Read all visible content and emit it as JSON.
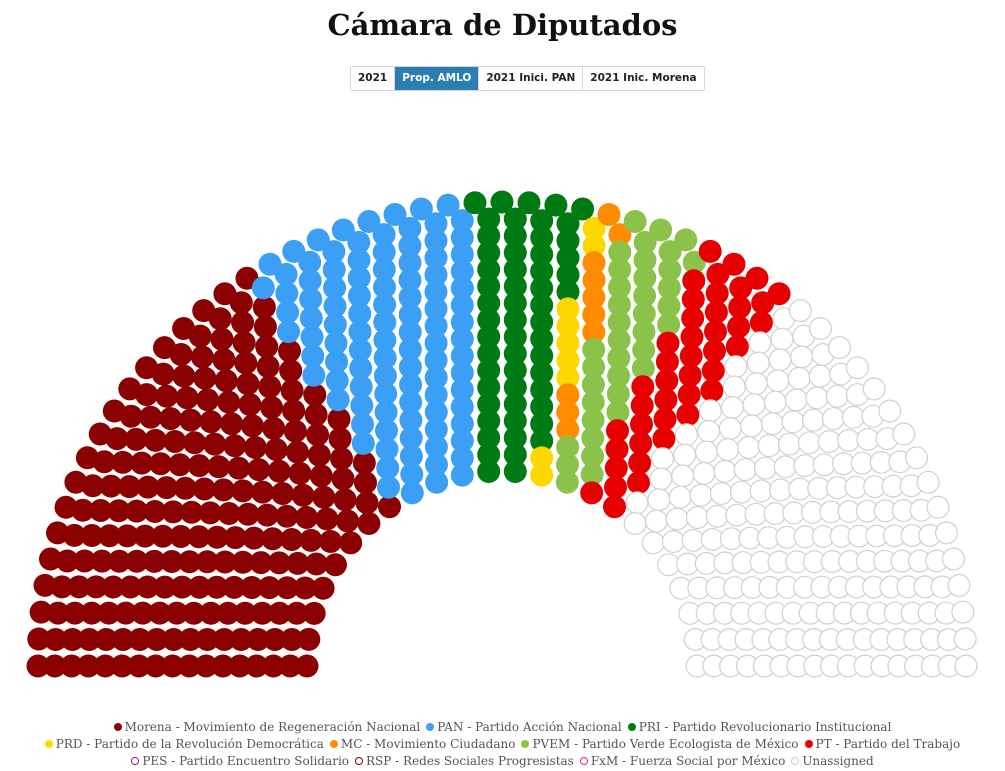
{
  "title": "Cámara de Diputados",
  "tabs": [
    {
      "label": "2021",
      "active": false
    },
    {
      "label": "Prop. AMLO",
      "active": true
    },
    {
      "label": "2021 Inici. PAN",
      "active": false
    },
    {
      "label": "2021 Inic. Morena",
      "active": false
    }
  ],
  "chart_data": {
    "type": "parliament",
    "title": "Cámara de Diputados",
    "rows": 17,
    "total_seats": 679,
    "parties": [
      {
        "name": "Morena - Movimiento de Regeneración Nacional",
        "seats": 218,
        "color": "#8b0000",
        "hollow": false,
        "legend_row": 0
      },
      {
        "name": "PAN - Partido Acción Nacional",
        "seats": 104,
        "color": "#3a9ff5",
        "hollow": false,
        "legend_row": 0
      },
      {
        "name": "PRI - Partido Revolucionario Institucional",
        "seats": 56,
        "color": "#007a13",
        "hollow": false,
        "legend_row": 0
      },
      {
        "name": "PRD - Partido de la Revolución Democrática",
        "seats": 9,
        "color": "#ffd700",
        "hollow": false,
        "legend_row": 1
      },
      {
        "name": "MC - Movimiento Ciudadano",
        "seats": 10,
        "color": "#ff8c00",
        "hollow": false,
        "legend_row": 1
      },
      {
        "name": "PVEM - Partido Verde Ecologista de México",
        "seats": 38,
        "color": "#8bc34a",
        "hollow": false,
        "legend_row": 1
      },
      {
        "name": "PT - Partido del Trabajo",
        "seats": 43,
        "color": "#e60000",
        "hollow": false,
        "legend_row": 1
      },
      {
        "name": "PES - Partido Encuentro Solidario",
        "seats": 0,
        "color": "#7b2d8e",
        "hollow": true,
        "legend_row": 2
      },
      {
        "name": "RSP - Redes Sociales Progresistas",
        "seats": 0,
        "color": "#8b0000",
        "hollow": true,
        "legend_row": 2
      },
      {
        "name": "FxM - Fuerza Social por México",
        "seats": 0,
        "color": "#e61e8c",
        "hollow": true,
        "legend_row": 2
      },
      {
        "name": "Unassigned",
        "seats": 201,
        "color": "#cccccc",
        "hollow": true,
        "legend_row": 2
      }
    ]
  }
}
